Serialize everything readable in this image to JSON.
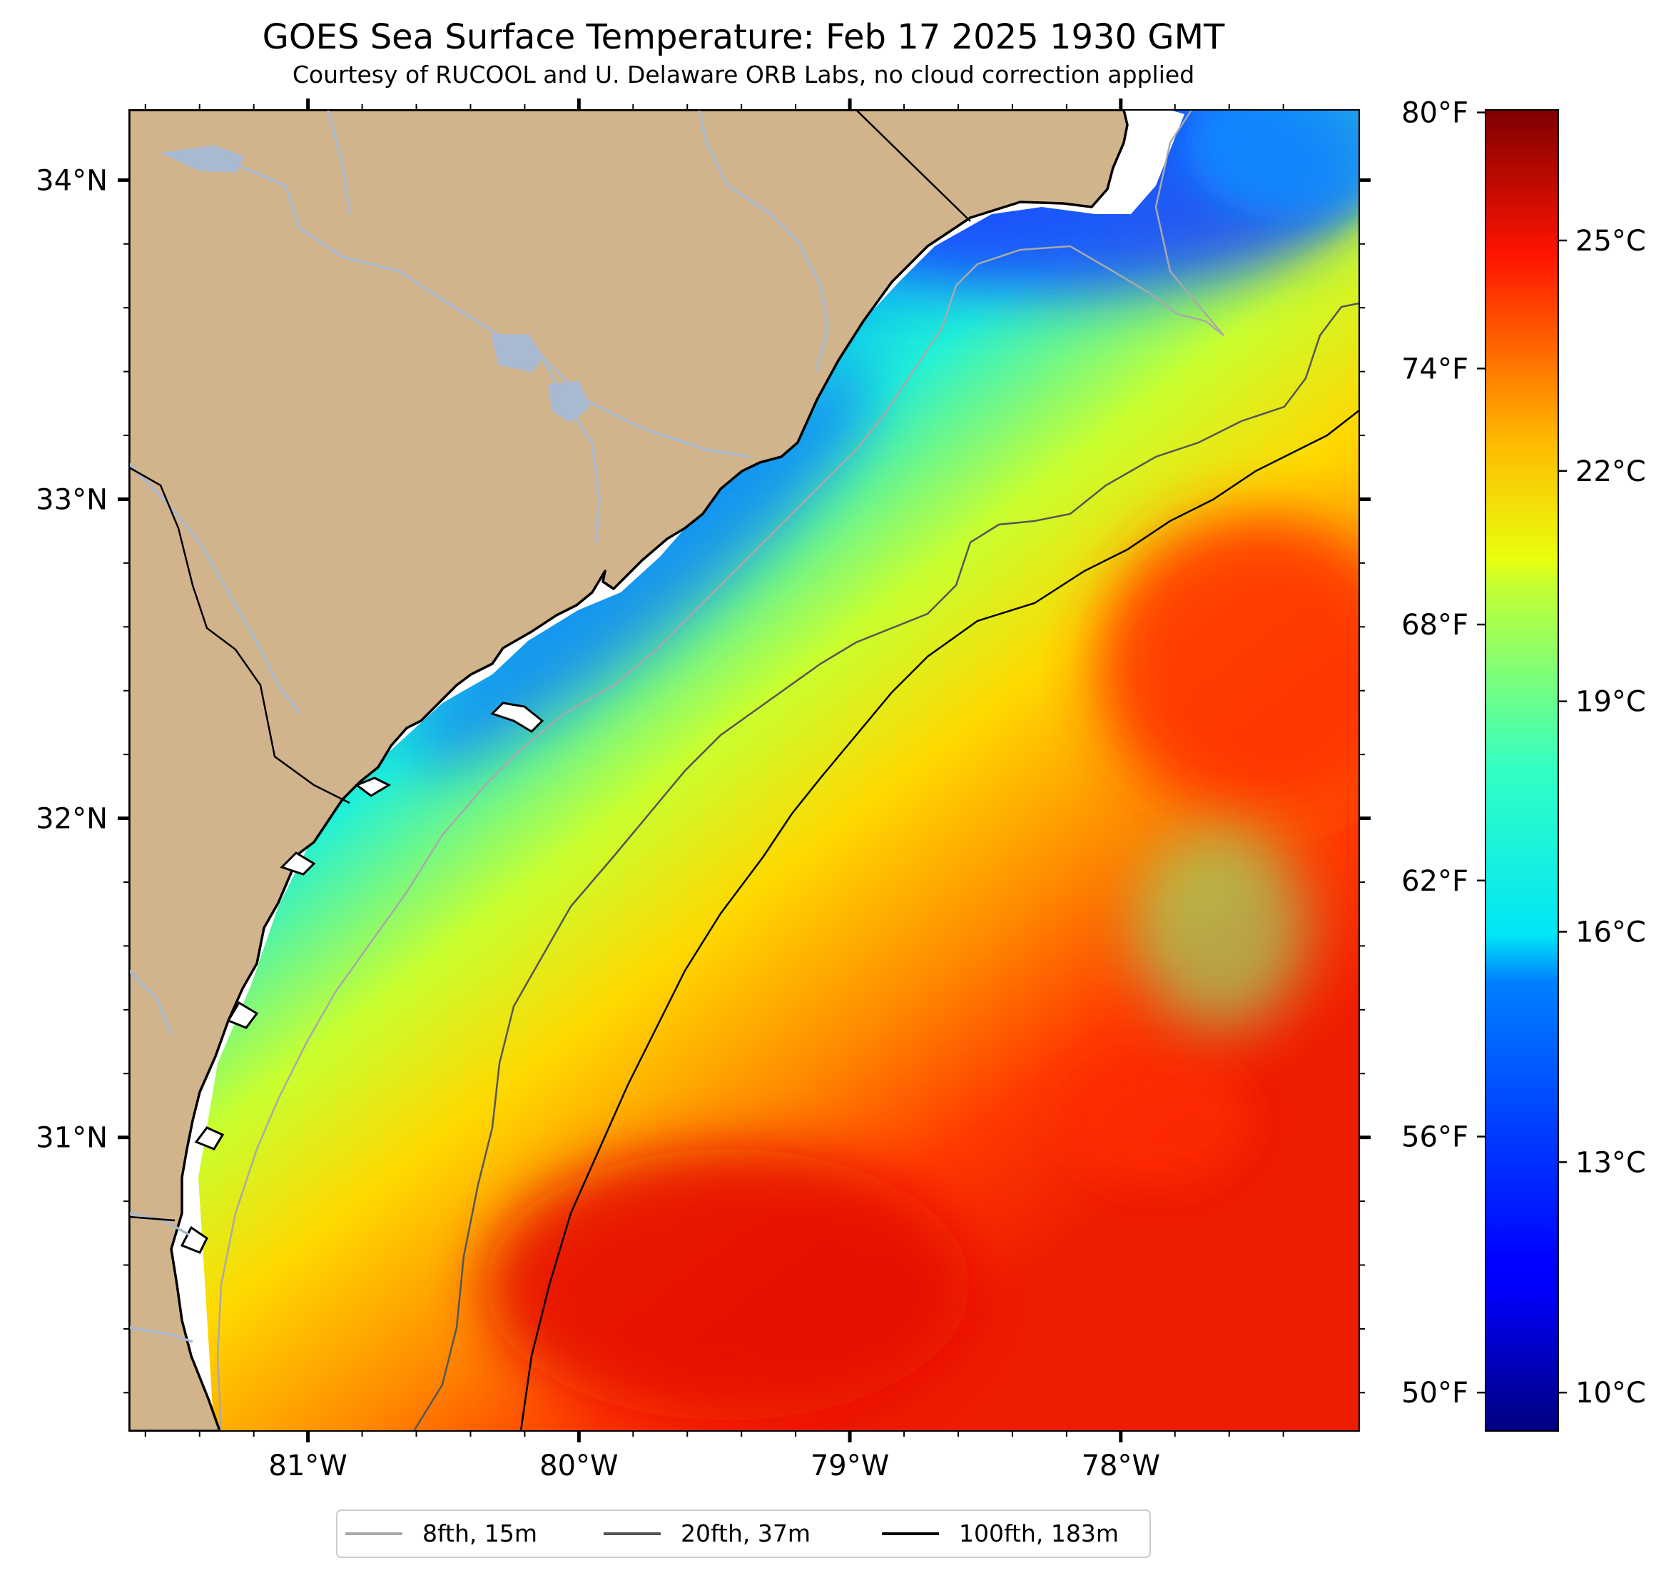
{
  "title": "GOES Sea Surface Temperature: Feb 17 2025 1930 GMT",
  "subtitle": "Courtesy of RUCOOL and U. Delaware ORB Labs, no cloud correction applied",
  "map": {
    "lon_range": [
      -81.66,
      -77.12
    ],
    "lat_range": [
      30.08,
      34.22
    ],
    "lon_ticks": [
      {
        "value": -81,
        "label": "81°W"
      },
      {
        "value": -80,
        "label": "80°W"
      },
      {
        "value": -79,
        "label": "79°W"
      },
      {
        "value": -78,
        "label": "78°W"
      }
    ],
    "lat_ticks": [
      {
        "value": 34,
        "label": "34°N"
      },
      {
        "value": 33,
        "label": "33°N"
      },
      {
        "value": 32,
        "label": "32°N"
      },
      {
        "value": 31,
        "label": "31°N"
      }
    ],
    "land_color": "#d2b48c",
    "river_color": "#a9b9cf",
    "colormap": "jet"
  },
  "colorbar": {
    "range_c": [
      9.5,
      26.7
    ],
    "celsius_ticks": [
      {
        "value": 10,
        "label": "10°C"
      },
      {
        "value": 13,
        "label": "13°C"
      },
      {
        "value": 16,
        "label": "16°C"
      },
      {
        "value": 19,
        "label": "19°C"
      },
      {
        "value": 22,
        "label": "22°C"
      },
      {
        "value": 25,
        "label": "25°C"
      }
    ],
    "fahrenheit_ticks": [
      {
        "value": 50,
        "label": "50°F"
      },
      {
        "value": 56,
        "label": "56°F"
      },
      {
        "value": 62,
        "label": "62°F"
      },
      {
        "value": 68,
        "label": "68°F"
      },
      {
        "value": 74,
        "label": "74°F"
      },
      {
        "value": 80,
        "label": "80°F"
      }
    ]
  },
  "legend": [
    {
      "label": "8fth, 15m",
      "color": "#a9a9a9"
    },
    {
      "label": "20fth, 37m",
      "color": "#555555"
    },
    {
      "label": "100fth, 183m",
      "color": "#000000"
    }
  ]
}
